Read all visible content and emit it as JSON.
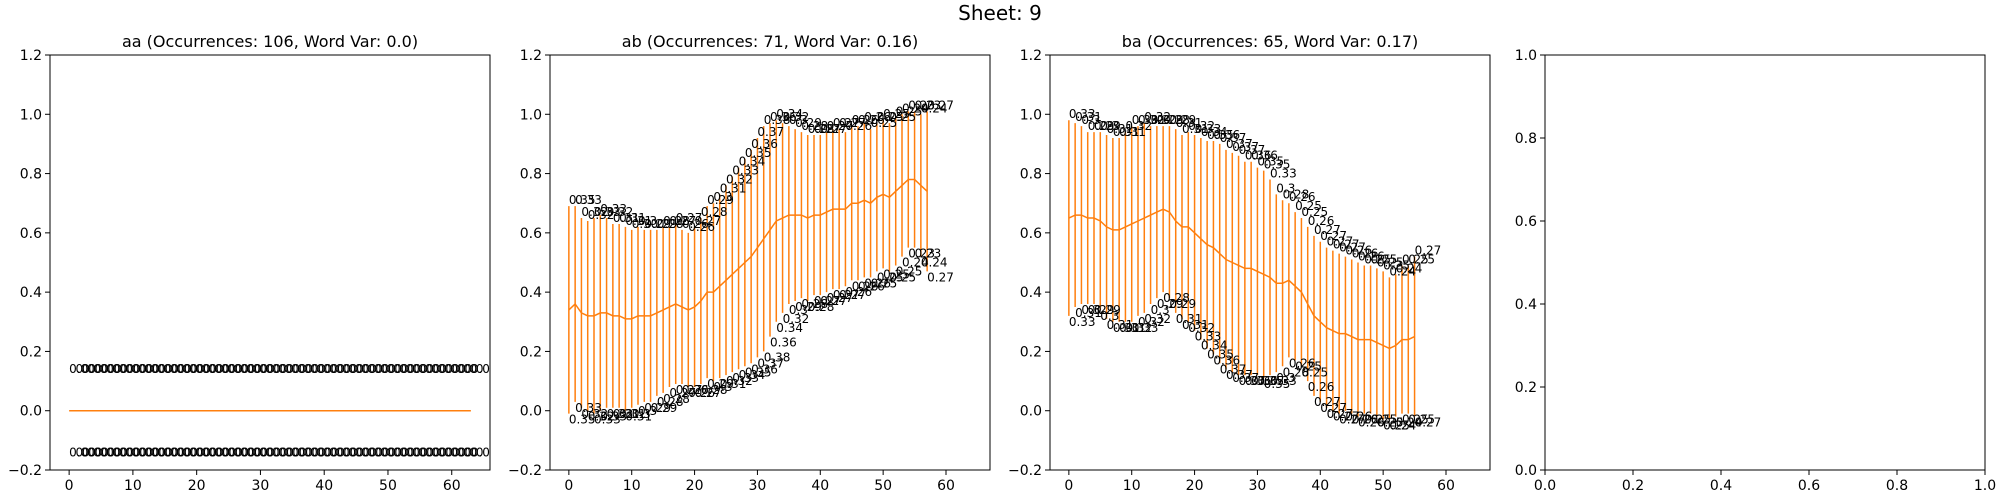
{
  "figure": {
    "suptitle": "Sheet: 9"
  },
  "chart_data": [
    {
      "type": "line",
      "title": "aa (Occurrences: 106, Word Var: 0.0)",
      "xlim": [
        -3,
        66
      ],
      "ylim": [
        -0.2,
        1.2
      ],
      "xticks": [
        0,
        10,
        20,
        30,
        40,
        50,
        60
      ],
      "yticks": [
        -0.2,
        0.0,
        0.2,
        0.4,
        0.6,
        0.8,
        1.0,
        1.2
      ],
      "ytick_labels": [
        "−0.2",
        "0.0",
        "0.2",
        "0.4",
        "0.6",
        "0.8",
        "1.0",
        "1.2"
      ],
      "series": [
        {
          "color": "#ff7f0e",
          "x_start": 0,
          "y": [
            0,
            0,
            0,
            0,
            0,
            0,
            0,
            0,
            0,
            0,
            0,
            0,
            0,
            0,
            0,
            0,
            0,
            0,
            0,
            0,
            0,
            0,
            0,
            0,
            0,
            0,
            0,
            0,
            0,
            0,
            0,
            0,
            0,
            0,
            0,
            0,
            0,
            0,
            0,
            0,
            0,
            0,
            0,
            0,
            0,
            0,
            0,
            0,
            0,
            0,
            0,
            0,
            0,
            0,
            0,
            0,
            0,
            0,
            0,
            0,
            0,
            0,
            0,
            0
          ],
          "err": [
            0,
            0,
            0,
            0,
            0,
            0,
            0,
            0,
            0,
            0,
            0,
            0,
            0,
            0,
            0,
            0,
            0,
            0,
            0,
            0,
            0,
            0,
            0,
            0,
            0,
            0,
            0,
            0,
            0,
            0,
            0,
            0,
            0,
            0,
            0,
            0,
            0,
            0,
            0,
            0,
            0,
            0,
            0,
            0,
            0,
            0,
            0,
            0,
            0,
            0,
            0,
            0,
            0,
            0,
            0,
            0,
            0,
            0,
            0,
            0,
            0,
            0,
            0,
            0
          ]
        }
      ],
      "label_offset": 0.12,
      "label_text": "0.0"
    },
    {
      "type": "line",
      "title": "ab (Occurrences: 71, Word Var: 0.16)",
      "xlim": [
        -3,
        67
      ],
      "ylim": [
        -0.2,
        1.2
      ],
      "xticks": [
        0,
        10,
        20,
        30,
        40,
        50,
        60
      ],
      "yticks": [
        -0.2,
        0.0,
        0.2,
        0.4,
        0.6,
        0.8,
        1.0,
        1.2
      ],
      "ytick_labels": [
        "−0.2",
        "0.0",
        "0.2",
        "0.4",
        "0.6",
        "0.8",
        "1.0",
        "1.2"
      ],
      "series": [
        {
          "color": "#ff7f0e",
          "x_start": 0,
          "y": [
            0.34,
            0.36,
            0.33,
            0.32,
            0.32,
            0.33,
            0.33,
            0.32,
            0.32,
            0.31,
            0.31,
            0.32,
            0.32,
            0.32,
            0.33,
            0.34,
            0.35,
            0.36,
            0.35,
            0.34,
            0.35,
            0.37,
            0.4,
            0.4,
            0.42,
            0.44,
            0.46,
            0.48,
            0.5,
            0.52,
            0.55,
            0.58,
            0.61,
            0.64,
            0.65,
            0.66,
            0.66,
            0.66,
            0.65,
            0.66,
            0.66,
            0.67,
            0.68,
            0.68,
            0.68,
            0.7,
            0.7,
            0.71,
            0.7,
            0.72,
            0.73,
            0.72,
            0.74,
            0.76,
            0.78,
            0.78,
            0.76,
            0.74
          ],
          "err": [
            0.35,
            0.33,
            0.32,
            0.32,
            0.33,
            0.33,
            0.32,
            0.31,
            0.31,
            0.31,
            0.3,
            0.3,
            0.29,
            0.29,
            0.28,
            0.28,
            0.27,
            0.27,
            0.26,
            0.26,
            0.27,
            0.28,
            0.29,
            0.3,
            0.31,
            0.32,
            0.33,
            0.34,
            0.35,
            0.36,
            0.37,
            0.38,
            0.36,
            0.34,
            0.32,
            0.3,
            0.29,
            0.28,
            0.28,
            0.27,
            0.27,
            0.27,
            0.27,
            0.27,
            0.26,
            0.26,
            0.26,
            0.26,
            0.25,
            0.25,
            0.25,
            0.25,
            0.25,
            0.24,
            0.23,
            0.23,
            0.24,
            0.27
          ]
        }
      ]
    },
    {
      "type": "line",
      "title": "ba (Occurrences: 65, Word Var: 0.17)",
      "xlim": [
        -3,
        67
      ],
      "ylim": [
        -0.2,
        1.2
      ],
      "xticks": [
        0,
        10,
        20,
        30,
        40,
        50,
        60
      ],
      "yticks": [
        -0.2,
        0.0,
        0.2,
        0.4,
        0.6,
        0.8,
        1.0,
        1.2
      ],
      "ytick_labels": [
        "−0.2",
        "0.0",
        "0.2",
        "0.4",
        "0.6",
        "0.8",
        "1.0",
        "1.2"
      ],
      "series": [
        {
          "color": "#ff7f0e",
          "x_start": 0,
          "y": [
            0.65,
            0.66,
            0.66,
            0.65,
            0.65,
            0.64,
            0.62,
            0.61,
            0.61,
            0.62,
            0.63,
            0.64,
            0.65,
            0.66,
            0.67,
            0.68,
            0.67,
            0.64,
            0.62,
            0.62,
            0.6,
            0.58,
            0.56,
            0.55,
            0.53,
            0.51,
            0.5,
            0.49,
            0.48,
            0.48,
            0.47,
            0.46,
            0.45,
            0.43,
            0.43,
            0.44,
            0.42,
            0.4,
            0.36,
            0.32,
            0.3,
            0.28,
            0.27,
            0.26,
            0.26,
            0.25,
            0.24,
            0.24,
            0.24,
            0.23,
            0.22,
            0.21,
            0.22,
            0.24,
            0.24,
            0.25
          ],
          "err": [
            0.33,
            0.31,
            0.3,
            0.29,
            0.29,
            0.3,
            0.31,
            0.31,
            0.31,
            0.32,
            0.33,
            0.32,
            0.32,
            0.3,
            0.29,
            0.28,
            0.29,
            0.31,
            0.31,
            0.32,
            0.33,
            0.34,
            0.35,
            0.36,
            0.37,
            0.37,
            0.37,
            0.37,
            0.36,
            0.36,
            0.35,
            0.35,
            0.33,
            0.3,
            0.28,
            0.26,
            0.25,
            0.25,
            0.26,
            0.27,
            0.27,
            0.27,
            0.27,
            0.27,
            0.26,
            0.26,
            0.26,
            0.25,
            0.25,
            0.25,
            0.25,
            0.24,
            0.24,
            0.25,
            0.25,
            0.27
          ]
        }
      ]
    },
    {
      "type": "line",
      "title": "",
      "xlim": [
        0,
        1
      ],
      "ylim": [
        0,
        1
      ],
      "xticks": [
        0.0,
        0.2,
        0.4,
        0.6,
        0.8,
        1.0
      ],
      "xtick_labels": [
        "0.0",
        "0.2",
        "0.4",
        "0.6",
        "0.8",
        "1.0"
      ],
      "yticks": [
        0.0,
        0.2,
        0.4,
        0.6,
        0.8,
        1.0
      ],
      "ytick_labels": [
        "0.0",
        "0.2",
        "0.4",
        "0.6",
        "0.8",
        "1.0"
      ],
      "series": []
    }
  ]
}
